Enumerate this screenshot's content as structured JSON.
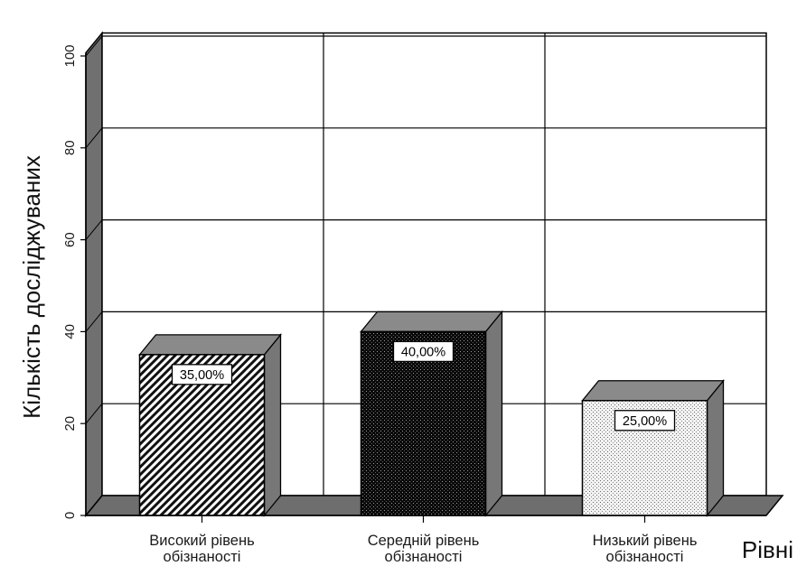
{
  "chart_data": {
    "type": "bar",
    "style": "3d",
    "categories": [
      [
        "Високий рівень",
        "обізнаності"
      ],
      [
        "Середній рівень",
        "обізнаності"
      ],
      [
        "Низький рівень",
        "обізнаності"
      ]
    ],
    "values": [
      35,
      40,
      25
    ],
    "data_labels": [
      "35,00%",
      "40,00%",
      "25,00%"
    ],
    "fill_patterns": [
      "diagonal-hatch",
      "dark-crosshatch",
      "light-dots"
    ],
    "xlabel": "Рівні",
    "ylabel": "Кількість досліджуваних",
    "ylim": [
      0,
      105
    ],
    "yticks": [
      0,
      20,
      40,
      60,
      80,
      100
    ],
    "grid": true,
    "colors": {
      "bar_side": "#777777",
      "bar_top": "#8a8a8a",
      "floor": "#6e6e6e",
      "wall_side": "#707070",
      "grid": "#000000"
    }
  }
}
